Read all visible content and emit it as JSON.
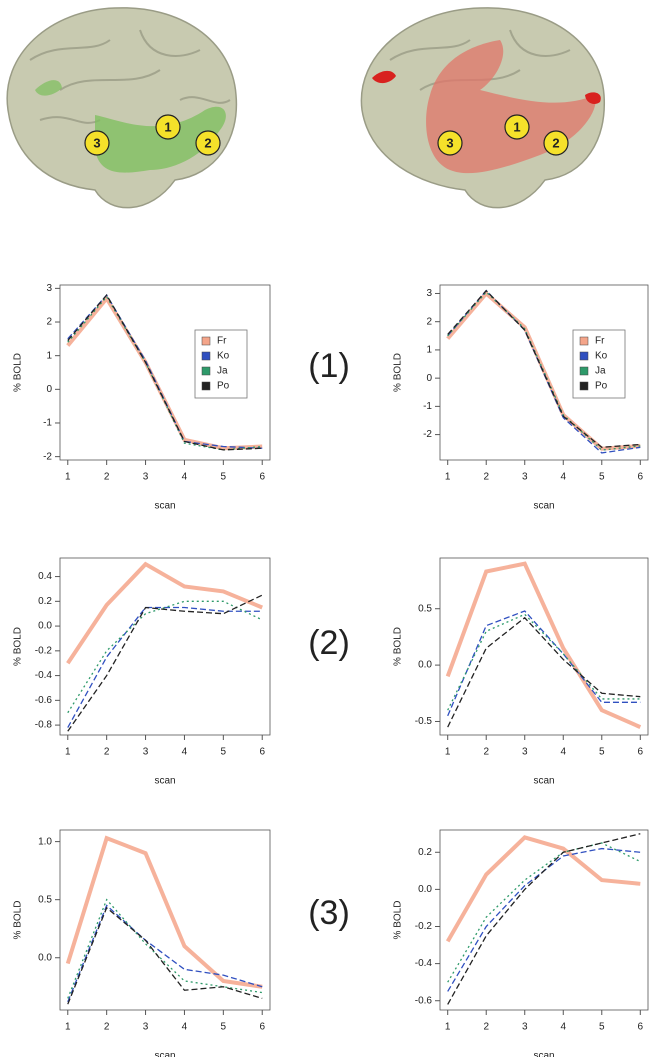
{
  "brains": [
    {
      "markers": [
        "3",
        "1",
        "2"
      ]
    },
    {
      "markers": [
        "3",
        "1",
        "2"
      ]
    }
  ],
  "row_labels": [
    "(1)",
    "(2)",
    "(3)"
  ],
  "chart_data": [
    {
      "type": "line",
      "xlabel": "scan",
      "ylabel": "% BOLD",
      "x": [
        1,
        2,
        3,
        4,
        5,
        6
      ],
      "xlim": [
        0.8,
        6.2
      ],
      "xticks": [
        1,
        2,
        3,
        4,
        5,
        6
      ],
      "ylim": [
        -2.1,
        3.1
      ],
      "yticks": [
        -2,
        -1,
        0,
        1,
        2,
        3
      ],
      "legend": "right",
      "series": [
        {
          "name": "Fr",
          "color": "#f4a58a",
          "style": "solid",
          "values": [
            1.3,
            2.7,
            0.8,
            -1.5,
            -1.75,
            -1.7
          ]
        },
        {
          "name": "Ko",
          "color": "#3050c0",
          "style": "dashed",
          "values": [
            1.5,
            2.8,
            0.85,
            -1.55,
            -1.7,
            -1.75
          ]
        },
        {
          "name": "Ja",
          "color": "#2e9a6a",
          "style": "dotted",
          "values": [
            1.4,
            2.75,
            0.8,
            -1.6,
            -1.8,
            -1.7
          ]
        },
        {
          "name": "Po",
          "color": "#222222",
          "style": "dashed",
          "values": [
            1.45,
            2.8,
            0.8,
            -1.55,
            -1.8,
            -1.75
          ]
        }
      ]
    },
    {
      "type": "line",
      "xlabel": "scan",
      "ylabel": "% BOLD",
      "x": [
        1,
        2,
        3,
        4,
        5,
        6
      ],
      "xlim": [
        0.8,
        6.2
      ],
      "xticks": [
        1,
        2,
        3,
        4,
        5,
        6
      ],
      "ylim": [
        -2.9,
        3.3
      ],
      "yticks": [
        -2,
        -1,
        0,
        1,
        2,
        3
      ],
      "legend": "right",
      "series": [
        {
          "name": "Fr",
          "color": "#f4a58a",
          "style": "solid",
          "values": [
            1.4,
            3.0,
            1.8,
            -1.3,
            -2.5,
            -2.4
          ]
        },
        {
          "name": "Ko",
          "color": "#3050c0",
          "style": "dashed",
          "values": [
            1.5,
            3.1,
            1.7,
            -1.4,
            -2.65,
            -2.45
          ]
        },
        {
          "name": "Ja",
          "color": "#2e9a6a",
          "style": "dotted",
          "values": [
            1.5,
            3.05,
            1.75,
            -1.3,
            -2.55,
            -2.4
          ]
        },
        {
          "name": "Po",
          "color": "#222222",
          "style": "dashed",
          "values": [
            1.55,
            3.1,
            1.7,
            -1.35,
            -2.45,
            -2.35
          ]
        }
      ]
    },
    {
      "type": "line",
      "xlabel": "scan",
      "ylabel": "% BOLD",
      "x": [
        1,
        2,
        3,
        4,
        5,
        6
      ],
      "xlim": [
        0.8,
        6.2
      ],
      "xticks": [
        1,
        2,
        3,
        4,
        5,
        6
      ],
      "ylim": [
        -0.88,
        0.55
      ],
      "yticks": [
        -0.8,
        -0.6,
        -0.4,
        -0.2,
        {
          "value": 0,
          "label": "0.0"
        },
        0.2,
        0.4
      ],
      "series": [
        {
          "name": "Fr",
          "color": "#f4a58a",
          "style": "solid",
          "values": [
            -0.3,
            0.17,
            0.5,
            0.32,
            0.28,
            0.15
          ]
        },
        {
          "name": "Ko",
          "color": "#3050c0",
          "style": "dashed",
          "values": [
            -0.82,
            -0.25,
            0.15,
            0.15,
            0.12,
            0.12
          ]
        },
        {
          "name": "Ja",
          "color": "#2e9a6a",
          "style": "dotted",
          "values": [
            -0.7,
            -0.2,
            0.1,
            0.2,
            0.2,
            0.05
          ]
        },
        {
          "name": "Po",
          "color": "#222222",
          "style": "dashed",
          "values": [
            -0.85,
            -0.4,
            0.15,
            0.12,
            0.1,
            0.25
          ]
        }
      ]
    },
    {
      "type": "line",
      "xlabel": "scan",
      "ylabel": "% BOLD",
      "x": [
        1,
        2,
        3,
        4,
        5,
        6
      ],
      "xlim": [
        0.8,
        6.2
      ],
      "xticks": [
        1,
        2,
        3,
        4,
        5,
        6
      ],
      "ylim": [
        -0.62,
        0.95
      ],
      "yticks": [
        -0.5,
        {
          "value": 0,
          "label": "0.0"
        },
        0.5
      ],
      "series": [
        {
          "name": "Fr",
          "color": "#f4a58a",
          "style": "solid",
          "values": [
            -0.1,
            0.83,
            0.9,
            0.15,
            -0.4,
            -0.55
          ]
        },
        {
          "name": "Ko",
          "color": "#3050c0",
          "style": "dashed",
          "values": [
            -0.45,
            0.35,
            0.48,
            0.1,
            -0.33,
            -0.33
          ]
        },
        {
          "name": "Ja",
          "color": "#2e9a6a",
          "style": "dotted",
          "values": [
            -0.4,
            0.3,
            0.45,
            0.1,
            -0.3,
            -0.3
          ]
        },
        {
          "name": "Po",
          "color": "#222222",
          "style": "dashed",
          "values": [
            -0.55,
            0.15,
            0.42,
            0.05,
            -0.25,
            -0.28
          ]
        }
      ]
    },
    {
      "type": "line",
      "xlabel": "scan",
      "ylabel": "% BOLD",
      "x": [
        1,
        2,
        3,
        4,
        5,
        6
      ],
      "xlim": [
        0.8,
        6.2
      ],
      "xticks": [
        1,
        2,
        3,
        4,
        5,
        6
      ],
      "ylim": [
        -0.45,
        1.1
      ],
      "yticks": [
        {
          "value": 0,
          "label": "0.0"
        },
        0.5,
        {
          "value": 1,
          "label": "1.0"
        }
      ],
      "series": [
        {
          "name": "Fr",
          "color": "#f4a58a",
          "style": "solid",
          "values": [
            -0.05,
            1.03,
            0.9,
            0.1,
            -0.2,
            -0.25
          ]
        },
        {
          "name": "Ko",
          "color": "#3050c0",
          "style": "dashed",
          "values": [
            -0.38,
            0.45,
            0.15,
            -0.1,
            -0.15,
            -0.25
          ]
        },
        {
          "name": "Ja",
          "color": "#2e9a6a",
          "style": "dotted",
          "values": [
            -0.35,
            0.5,
            0.12,
            -0.2,
            -0.25,
            -0.3
          ]
        },
        {
          "name": "Po",
          "color": "#222222",
          "style": "dashed",
          "values": [
            -0.4,
            0.43,
            0.15,
            -0.28,
            -0.25,
            -0.35
          ]
        }
      ]
    },
    {
      "type": "line",
      "xlabel": "scan",
      "ylabel": "% BOLD",
      "x": [
        1,
        2,
        3,
        4,
        5,
        6
      ],
      "xlim": [
        0.8,
        6.2
      ],
      "xticks": [
        1,
        2,
        3,
        4,
        5,
        6
      ],
      "ylim": [
        -0.65,
        0.32
      ],
      "yticks": [
        -0.6,
        -0.4,
        -0.2,
        {
          "value": 0,
          "label": "0.0"
        },
        0.2
      ],
      "series": [
        {
          "name": "Fr",
          "color": "#f4a58a",
          "style": "solid",
          "values": [
            -0.28,
            0.08,
            0.28,
            0.22,
            0.05,
            0.03
          ]
        },
        {
          "name": "Ko",
          "color": "#3050c0",
          "style": "dashed",
          "values": [
            -0.55,
            -0.2,
            0.02,
            0.18,
            0.22,
            0.2
          ]
        },
        {
          "name": "Ja",
          "color": "#2e9a6a",
          "style": "dotted",
          "values": [
            -0.5,
            -0.15,
            0.05,
            0.2,
            0.25,
            0.15
          ]
        },
        {
          "name": "Po",
          "color": "#222222",
          "style": "dashed",
          "values": [
            -0.62,
            -0.25,
            0.0,
            0.2,
            0.25,
            0.3
          ]
        }
      ]
    }
  ]
}
